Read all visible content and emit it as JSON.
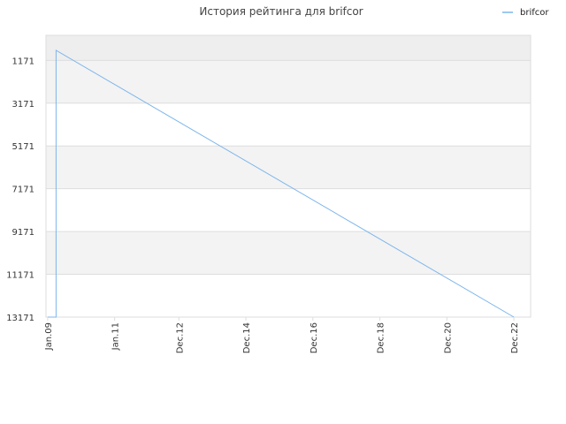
{
  "chart_data": {
    "type": "line",
    "title": "История рейтинга для brifcor",
    "xlabel": "",
    "ylabel": "",
    "x_tick_labels": [
      "Jan.09",
      "Jan.11",
      "Dec.12",
      "Dec.14",
      "Dec.16",
      "Dec.18",
      "Dec.20",
      "Dec.22"
    ],
    "y_tick_labels": [
      "1171",
      "3171",
      "5171",
      "7171",
      "9171",
      "11171",
      "13171"
    ],
    "ylim": [
      13171,
      0
    ],
    "y_inverted": true,
    "grid": true,
    "alternating_bands": true,
    "legend_position": "top-right",
    "series": [
      {
        "name": "brifcor",
        "color": "#7cb5ec",
        "x": [
          "2009-01",
          "2009-04",
          "2009-04",
          "2022-12"
        ],
        "y": [
          13171,
          13171,
          700,
          13171
        ]
      }
    ]
  },
  "colors": {
    "line": "#7cb5ec",
    "band_dark": "#eeeeee",
    "band_light": "#f3f3f3",
    "grid": "#dddddd",
    "border": "#dddddd"
  }
}
